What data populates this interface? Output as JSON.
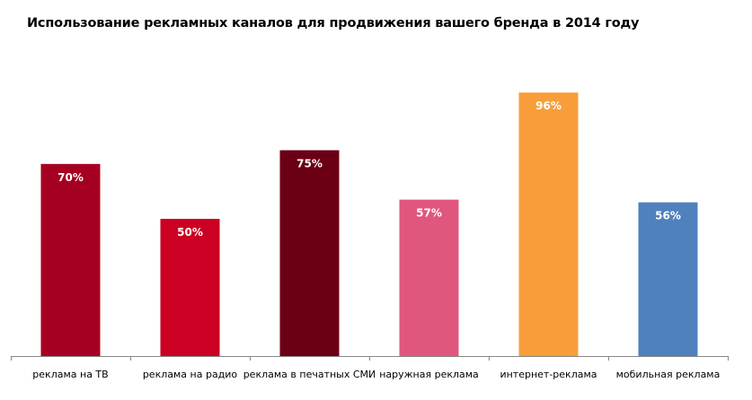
{
  "chart_data": {
    "type": "bar",
    "title": "Использование рекламных каналов для продвижения вашего бренда в 2014 году",
    "xlabel": "",
    "ylabel": "",
    "ylim": [
      0,
      100
    ],
    "grid": false,
    "legend": "none",
    "categories": [
      "реклама на ТВ",
      "реклама на радио",
      "реклама в печатных СМИ",
      "наружная реклама",
      "интернет-реклама",
      "мобильная реклама"
    ],
    "values": [
      70,
      50,
      75,
      57,
      96,
      56
    ],
    "data_labels": [
      "70%",
      "50%",
      "75%",
      "57%",
      "96%",
      "56%"
    ],
    "colors": [
      "#a50021",
      "#cc0022",
      "#6b0014",
      "#e0577e",
      "#f79e3b",
      "#4f81bd"
    ],
    "axis_color": "#868686"
  }
}
